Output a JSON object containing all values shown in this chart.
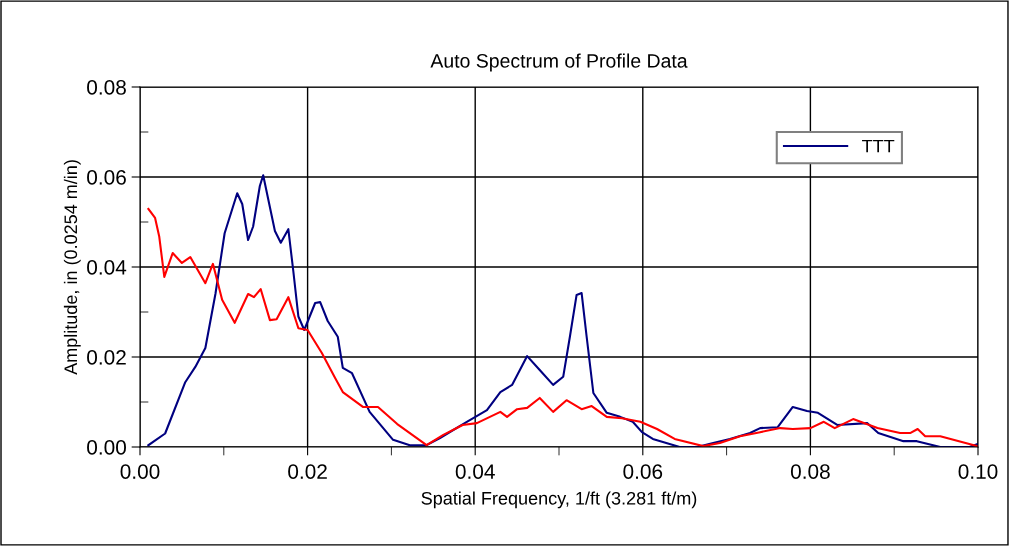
{
  "chart_data": {
    "type": "line",
    "title": "Auto Spectrum of Profile Data",
    "xlabel": "Spatial Frequency, 1/ft (3.281 ft/m)",
    "ylabel": "Amplitude, in (0.0254 m/in)",
    "xlim": [
      0,
      0.1
    ],
    "ylim": [
      0,
      0.08
    ],
    "xticks": [
      {
        "value": 0,
        "label": "0.00"
      },
      {
        "value": 0.01,
        "label": null
      },
      {
        "value": 0.02,
        "label": "0.02"
      },
      {
        "value": 0.03,
        "label": null
      },
      {
        "value": 0.04,
        "label": "0.04"
      },
      {
        "value": 0.05,
        "label": null
      },
      {
        "value": 0.06,
        "label": "0.06"
      },
      {
        "value": 0.07,
        "label": null
      },
      {
        "value": 0.08,
        "label": "0.08"
      },
      {
        "value": 0.09,
        "label": null
      },
      {
        "value": 0.1,
        "label": "0.10"
      }
    ],
    "yticks": [
      {
        "value": 0,
        "label": "0.00"
      },
      {
        "value": 0.01,
        "label": null
      },
      {
        "value": 0.02,
        "label": "0.02"
      },
      {
        "value": 0.03,
        "label": null
      },
      {
        "value": 0.04,
        "label": "0.04"
      },
      {
        "value": 0.05,
        "label": null
      },
      {
        "value": 0.06,
        "label": "0.06"
      },
      {
        "value": 0.07,
        "label": null
      },
      {
        "value": 0.08,
        "label": "0.08"
      }
    ],
    "grid": true,
    "legend": "top right",
    "marker": "none",
    "line_style": "solid",
    "series": [
      {
        "name": "TTT",
        "color": "#000080",
        "x": [
          0.001,
          0.003,
          0.0054,
          0.0066,
          0.0078,
          0.009,
          0.0101,
          0.0116,
          0.0122,
          0.0129,
          0.0135,
          0.0143,
          0.0147,
          0.0161,
          0.0168,
          0.0177,
          0.0183,
          0.0189,
          0.0196,
          0.0209,
          0.0215,
          0.0224,
          0.0236,
          0.0242,
          0.0253,
          0.0274,
          0.0302,
          0.0322,
          0.0342,
          0.0358,
          0.039,
          0.0414,
          0.043,
          0.0444,
          0.0462,
          0.0477,
          0.0493,
          0.0505,
          0.0513,
          0.0521,
          0.0527,
          0.0533,
          0.0541,
          0.0557,
          0.0573,
          0.0588,
          0.0599,
          0.0612,
          0.0644,
          0.0665,
          0.0684,
          0.0704,
          0.0728,
          0.074,
          0.0761,
          0.0779,
          0.0796,
          0.0809,
          0.0832,
          0.0868,
          0.0881,
          0.0911,
          0.0927,
          0.0955,
          0.099,
          0.1
        ],
        "values": [
          0.0004,
          0.003,
          0.0144,
          0.0178,
          0.022,
          0.034,
          0.0475,
          0.0564,
          0.054,
          0.046,
          0.049,
          0.058,
          0.0604,
          0.048,
          0.0454,
          0.0484,
          0.039,
          0.029,
          0.026,
          0.032,
          0.0322,
          0.028,
          0.0245,
          0.0176,
          0.0164,
          0.0078,
          0.0016,
          0.0004,
          0.0004,
          0.002,
          0.0056,
          0.0082,
          0.0122,
          0.0138,
          0.0202,
          0.0171,
          0.0138,
          0.0156,
          0.0245,
          0.0338,
          0.0342,
          0.0245,
          0.012,
          0.0076,
          0.0067,
          0.0056,
          0.0033,
          0.0018,
          0,
          0,
          0.0009,
          0.0018,
          0.0031,
          0.0042,
          0.0044,
          0.0089,
          0.008,
          0.0076,
          0.0049,
          0.0053,
          0.0031,
          0.0013,
          0.0013,
          0,
          0,
          0.0007
        ]
      },
      {
        "color": "#ff0000",
        "x": [
          0.001,
          0.0018,
          0.0023,
          0.0029,
          0.0039,
          0.005,
          0.006,
          0.0078,
          0.0087,
          0.0098,
          0.0113,
          0.0129,
          0.0136,
          0.0144,
          0.0155,
          0.0163,
          0.0177,
          0.0189,
          0.02,
          0.0217,
          0.0233,
          0.0242,
          0.0253,
          0.0266,
          0.0284,
          0.0307,
          0.0342,
          0.0362,
          0.0385,
          0.0402,
          0.043,
          0.0438,
          0.045,
          0.0462,
          0.0477,
          0.0493,
          0.0509,
          0.0527,
          0.0539,
          0.0557,
          0.0575,
          0.0597,
          0.0617,
          0.0638,
          0.0672,
          0.0692,
          0.0716,
          0.074,
          0.0764,
          0.0779,
          0.08,
          0.0816,
          0.0829,
          0.0851,
          0.088,
          0.0907,
          0.0919,
          0.0928,
          0.0937,
          0.0955,
          0.0999
        ],
        "values": [
          0.0529,
          0.0509,
          0.0467,
          0.0378,
          0.0431,
          0.0409,
          0.0422,
          0.0364,
          0.0407,
          0.0327,
          0.0276,
          0.034,
          0.0333,
          0.0351,
          0.0282,
          0.0284,
          0.0333,
          0.0264,
          0.026,
          0.0209,
          0.0153,
          0.0122,
          0.0107,
          0.0089,
          0.0089,
          0.0051,
          0.0004,
          0.0027,
          0.0049,
          0.0053,
          0.0078,
          0.0067,
          0.0084,
          0.0087,
          0.0109,
          0.0078,
          0.0104,
          0.0084,
          0.0091,
          0.0067,
          0.0064,
          0.0056,
          0.004,
          0.0018,
          0.0002,
          0.0009,
          0.0024,
          0.0033,
          0.0042,
          0.004,
          0.0042,
          0.0056,
          0.0042,
          0.0062,
          0.0042,
          0.0031,
          0.0031,
          0.004,
          0.0024,
          0.0024,
          0.0002
        ]
      }
    ]
  }
}
